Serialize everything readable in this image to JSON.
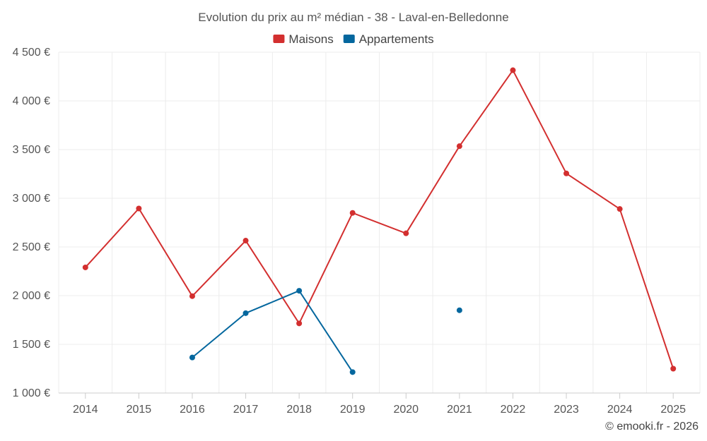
{
  "chart_data": {
    "type": "line",
    "title": "Evolution du prix au m² médian - 38 - Laval-en-Belledonne",
    "categories": [
      "2014",
      "2015",
      "2016",
      "2017",
      "2018",
      "2019",
      "2020",
      "2021",
      "2022",
      "2023",
      "2024",
      "2025"
    ],
    "series": [
      {
        "name": "Maisons",
        "color": "#d32f2f",
        "values": [
          2290,
          2895,
          1995,
          2565,
          1715,
          2850,
          2640,
          3535,
          4315,
          3255,
          2890,
          1250
        ]
      },
      {
        "name": "Appartements",
        "color": "#04679e",
        "values": [
          null,
          null,
          1365,
          1820,
          2050,
          1215,
          null,
          1850,
          null,
          null,
          null,
          null
        ]
      }
    ],
    "ylim": [
      1000,
      4500
    ],
    "yticks": [
      1000,
      1500,
      2000,
      2500,
      3000,
      3500,
      4000,
      4500
    ],
    "ytick_labels": [
      "1 000 €",
      "1 500 €",
      "2 000 €",
      "2 500 €",
      "3 000 €",
      "3 500 €",
      "4 000 €",
      "4 500 €"
    ],
    "xlabel": "",
    "ylabel": "",
    "grid": true,
    "legend_position": "top-center"
  },
  "credit": "© emooki.fr - 2026"
}
